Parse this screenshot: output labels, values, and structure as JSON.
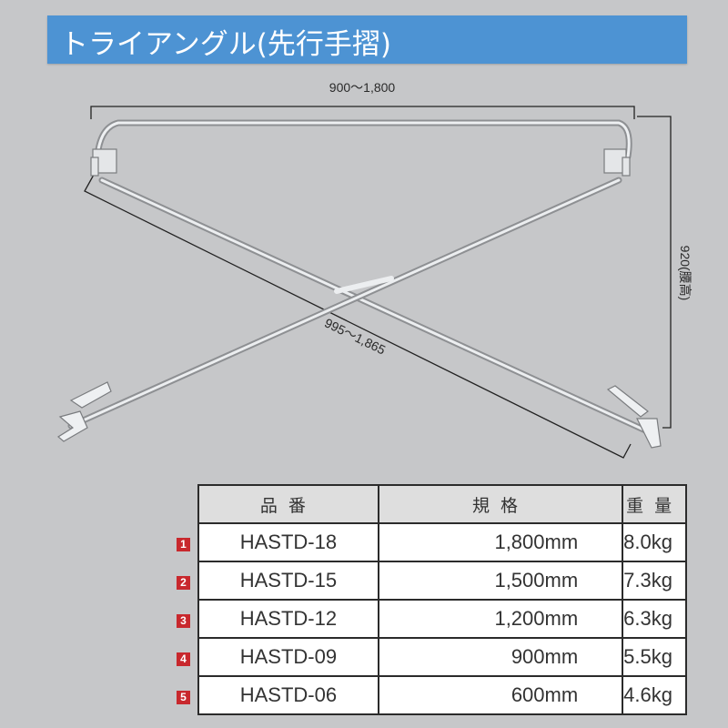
{
  "title": "トライアングル(先行手摺)",
  "dimensions": {
    "width": "900〜1,800",
    "height": "920(腰高)",
    "diagonal": "995〜1,865"
  },
  "colors": {
    "title_bar": "#4d93d3",
    "badge": "#c8282d",
    "background": "#c6c7c9"
  },
  "table": {
    "headers": [
      "品番",
      "規格",
      "重量"
    ],
    "rows": [
      {
        "no": "1",
        "code": "HASTD-18",
        "size": "1,800mm",
        "weight": "8.0kg"
      },
      {
        "no": "2",
        "code": "HASTD-15",
        "size": "1,500mm",
        "weight": "7.3kg"
      },
      {
        "no": "3",
        "code": "HASTD-12",
        "size": "1,200mm",
        "weight": "6.3kg"
      },
      {
        "no": "4",
        "code": "HASTD-09",
        "size": "900mm",
        "weight": "5.5kg"
      },
      {
        "no": "5",
        "code": "HASTD-06",
        "size": "600mm",
        "weight": "4.6kg"
      }
    ]
  }
}
